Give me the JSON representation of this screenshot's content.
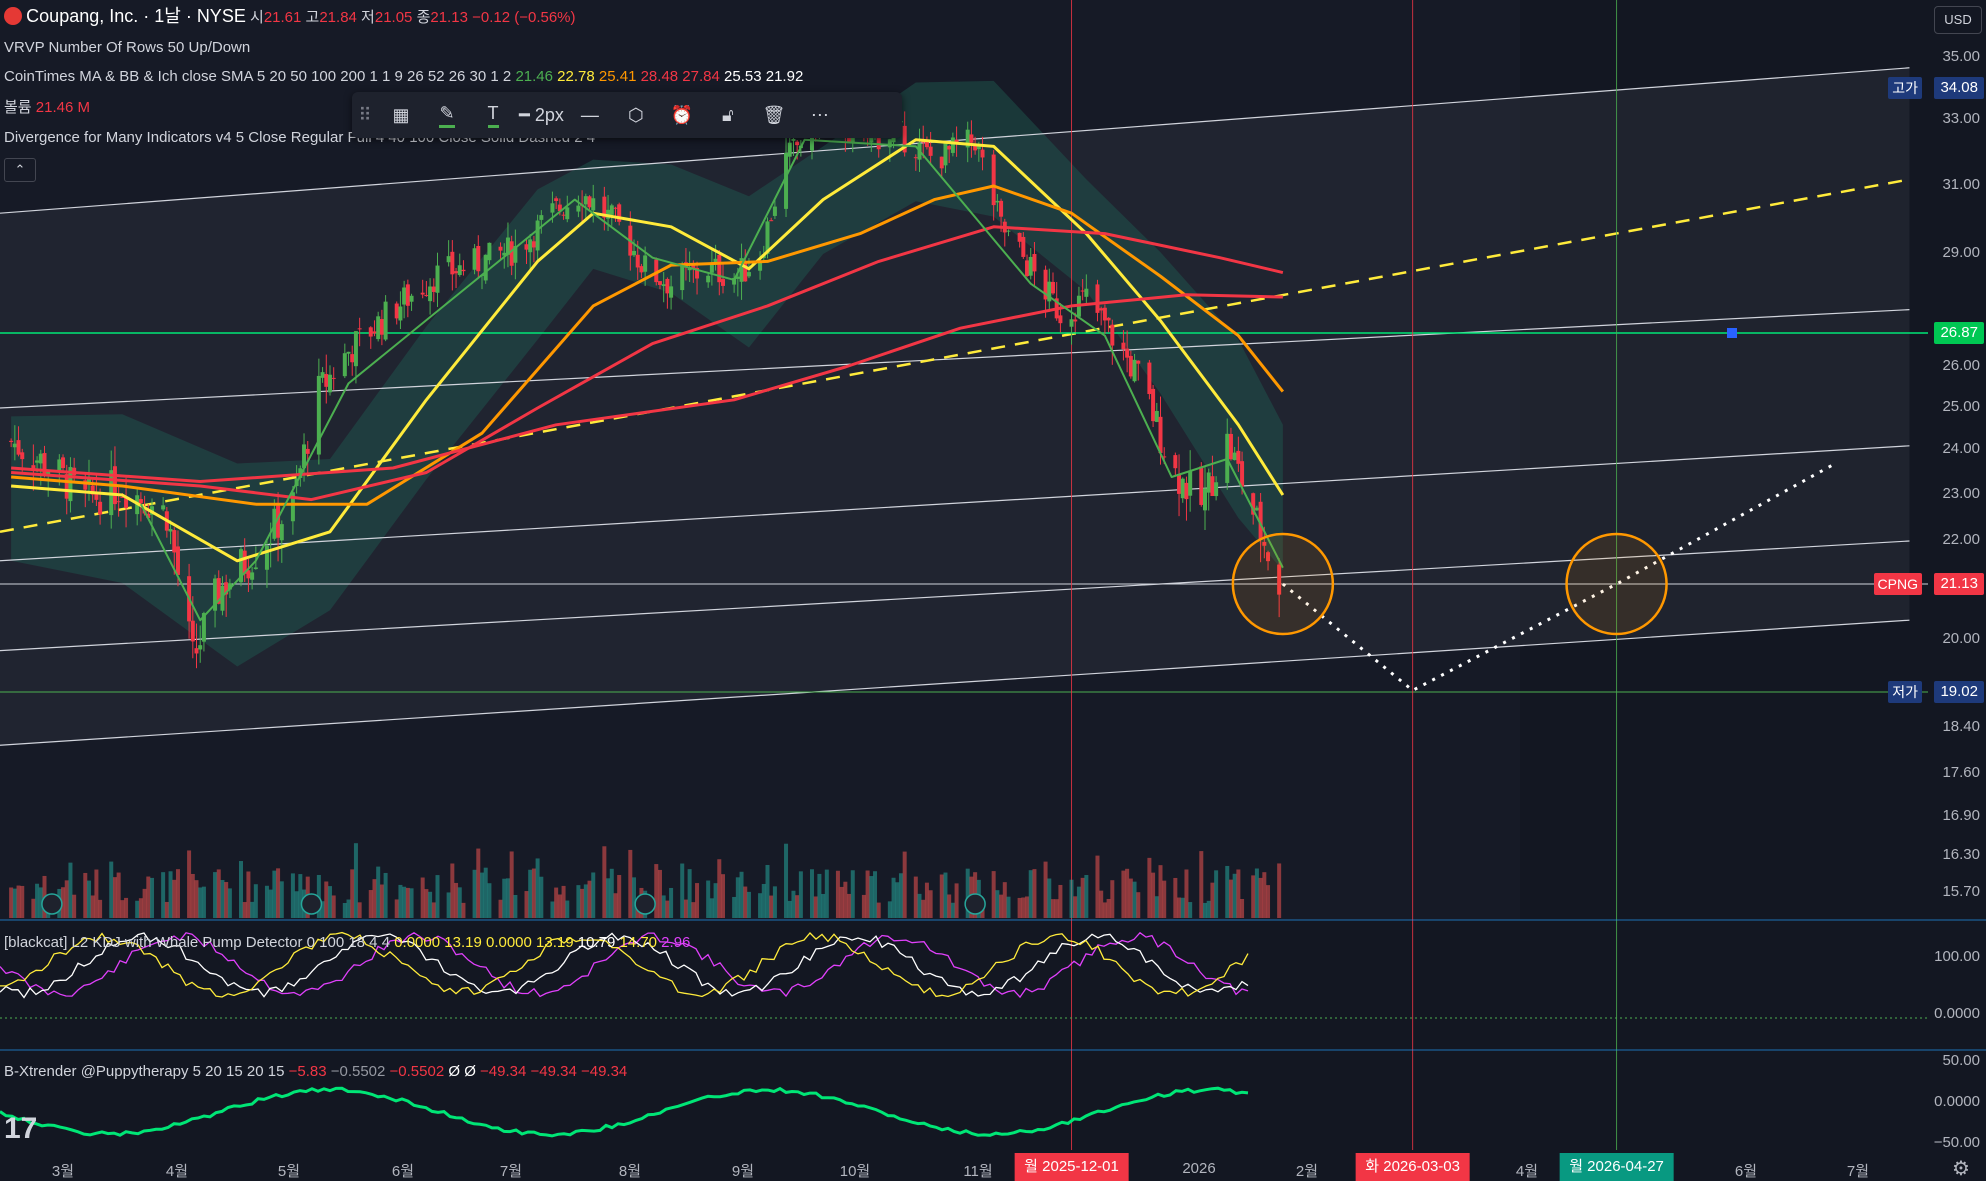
{
  "header": {
    "symbol_title": "Coupang, Inc. · 1날 · NYSE",
    "ohlc": [
      {
        "k": "시",
        "v": "21.61"
      },
      {
        "k": "고",
        "v": "21.84"
      },
      {
        "k": "저",
        "v": "21.05"
      },
      {
        "k": "종",
        "v": "21.13"
      }
    ],
    "change": "−0.12 (−0.56%)"
  },
  "legend": {
    "vrvp": "VRVP Number Of Rows 50 Up/Down",
    "ma_name": "CoinTimes MA & BB & Ich close SMA 5 20 50 100 200 1 1 9 26 52 26 30 1 2",
    "ma_values": [
      {
        "v": "21.46",
        "color": "#4caf50"
      },
      {
        "v": "22.78",
        "color": "#ffeb3b"
      },
      {
        "v": "25.41",
        "color": "#ff9800"
      },
      {
        "v": "28.48",
        "color": "#f23645"
      },
      {
        "v": "27.84",
        "color": "#f23645"
      },
      {
        "v": "25.53",
        "color": "#ffffff"
      },
      {
        "v": "21.92",
        "color": "#ffffff"
      }
    ],
    "volume_label": "볼륨",
    "volume_value": "21.46 M",
    "divergence": "Divergence for Many Indicators v4 5 Close Regular Full 4 40 100 Close Solid Dashed 2 4",
    "kdj_name": "[blackcat] L2 KDJ with Whale Pump Detector 0 100 18 4 4",
    "kdj_values": [
      {
        "v": "0.0000",
        "color": "#ffeb3b"
      },
      {
        "v": "13.19",
        "color": "#ffeb3b"
      },
      {
        "v": "0.0000",
        "color": "#ffeb3b"
      },
      {
        "v": "13.19",
        "color": "#ffeb3b"
      },
      {
        "v": "10.79",
        "color": "#ffffff"
      },
      {
        "v": "14.70",
        "color": "#ffeb3b"
      },
      {
        "v": "2.96",
        "color": "#e040fb"
      }
    ],
    "xtrender_name": "B-Xtrender @Puppytherapy 5 20 15 20 15",
    "xtrender_values": [
      {
        "v": "−5.83",
        "color": "#f23645"
      },
      {
        "v": "−0.5502",
        "color": "#9598a1"
      },
      {
        "v": "−0.5502",
        "color": "#f23645"
      },
      {
        "v": "Ø",
        "color": "#ffffff"
      },
      {
        "v": "Ø",
        "color": "#ffffff"
      },
      {
        "v": "−49.34",
        "color": "#f23645"
      },
      {
        "v": "−49.34",
        "color": "#f23645"
      },
      {
        "v": "−49.34",
        "color": "#f23645"
      }
    ]
  },
  "toolbar": {
    "width_label": "2px",
    "icons": [
      "drag-handle-icon",
      "layout-icon",
      "pencil-icon",
      "text-icon",
      "line-style-icon",
      "line-dash-icon",
      "settings-hex-icon",
      "alert-clock-icon",
      "lock-icon",
      "trash-icon",
      "more-icon"
    ]
  },
  "axis": {
    "currency": "USD",
    "price_ticks": [
      "35.00",
      "34.08",
      "33.00",
      "31.00",
      "29.00",
      "26.87",
      "26.00",
      "25.00",
      "24.00",
      "23.00",
      "22.00",
      "21.13",
      "20.00",
      "19.02",
      "18.40",
      "17.60",
      "16.90",
      "16.30",
      "15.70"
    ],
    "price_plain_ticks": [
      35.0,
      33.0,
      31.0,
      29.0,
      26.0,
      25.0,
      24.0,
      23.0,
      22.0,
      20.0,
      18.4,
      17.6,
      16.9,
      16.3,
      15.7
    ],
    "high_tag": {
      "label": "고가",
      "value": "34.08",
      "color": "#1e3a7b"
    },
    "hline_tag": {
      "value": "26.87",
      "color": "#00c853"
    },
    "last_tag": {
      "label": "CPNG",
      "value": "21.13",
      "color": "#f23645"
    },
    "low_tag": {
      "label": "저가",
      "value": "19.02",
      "color": "#1e3a7b"
    },
    "kdj_ticks": [
      "100.00",
      "0.0000"
    ],
    "xt_ticks": [
      "50.00",
      "0.0000",
      "−50.00"
    ]
  },
  "time_axis": {
    "ticks": [
      "3월",
      "4월",
      "5월",
      "6월",
      "7월",
      "8월",
      "9월",
      "10월",
      "11월",
      "2026",
      "2월",
      "4월",
      "6월",
      "7월"
    ],
    "highlights": [
      {
        "label": "월 2025-12-01",
        "color": "#f23645"
      },
      {
        "label": "화 2026-03-03",
        "color": "#f23645"
      },
      {
        "label": "월 2026-04-27",
        "color": "#089981"
      }
    ]
  },
  "chart_data": {
    "type": "candlestick",
    "symbol": "CPNG",
    "x_range": [
      "2025-02-15",
      "2026-07-20"
    ],
    "ylim": [
      15.3,
      36.0
    ],
    "last_close": 21.13,
    "high_level": 34.08,
    "low_level": 19.02,
    "horizontal_line": 26.87,
    "grid": false,
    "close_path": [
      [
        "2025-02-18",
        24.2
      ],
      [
        "2025-03-01",
        23.6
      ],
      [
        "2025-03-10",
        22.9
      ],
      [
        "2025-03-20",
        23.2
      ],
      [
        "2025-04-01",
        22.6
      ],
      [
        "2025-04-08",
        19.6
      ],
      [
        "2025-04-15",
        21.0
      ],
      [
        "2025-04-25",
        21.8
      ],
      [
        "2025-05-05",
        22.8
      ],
      [
        "2025-05-12",
        25.4
      ],
      [
        "2025-05-20",
        26.4
      ],
      [
        "2025-06-01",
        27.5
      ],
      [
        "2025-06-12",
        28.4
      ],
      [
        "2025-06-25",
        28.8
      ],
      [
        "2025-07-05",
        29.2
      ],
      [
        "2025-07-15",
        30.3
      ],
      [
        "2025-07-22",
        30.8
      ],
      [
        "2025-08-01",
        29.8
      ],
      [
        "2025-08-08",
        28.6
      ],
      [
        "2025-08-15",
        28.2
      ],
      [
        "2025-08-25",
        28.6
      ],
      [
        "2025-09-02",
        28.4
      ],
      [
        "2025-09-08",
        29.0
      ],
      [
        "2025-09-15",
        31.8
      ],
      [
        "2025-09-25",
        33.2
      ],
      [
        "2025-10-05",
        32.4
      ],
      [
        "2025-10-15",
        32.6
      ],
      [
        "2025-10-25",
        31.8
      ],
      [
        "2025-11-05",
        32.4
      ],
      [
        "2025-11-12",
        29.8
      ],
      [
        "2025-11-20",
        28.6
      ],
      [
        "2025-11-28",
        27.4
      ],
      [
        "2025-12-05",
        27.8
      ],
      [
        "2025-12-12",
        26.8
      ],
      [
        "2025-12-20",
        25.6
      ],
      [
        "2025-12-28",
        23.6
      ],
      [
        "2026-01-05",
        22.8
      ],
      [
        "2026-01-12",
        24.2
      ],
      [
        "2026-01-20",
        22.4
      ],
      [
        "2026-01-26",
        21.13
      ]
    ],
    "series": [
      {
        "name": "SMA 20",
        "color": "#ffeb3b",
        "values": [
          [
            "2025-02-18",
            23.2
          ],
          [
            "2025-03-20",
            23.0
          ],
          [
            "2025-04-20",
            21.6
          ],
          [
            "2025-05-15",
            22.2
          ],
          [
            "2025-06-10",
            25.2
          ],
          [
            "2025-07-10",
            28.8
          ],
          [
            "2025-07-25",
            30.2
          ],
          [
            "2025-08-15",
            29.8
          ],
          [
            "2025-09-05",
            28.6
          ],
          [
            "2025-09-25",
            30.6
          ],
          [
            "2025-10-20",
            32.4
          ],
          [
            "2025-11-10",
            32.2
          ],
          [
            "2025-12-05",
            29.6
          ],
          [
            "2025-12-25",
            27.2
          ],
          [
            "2026-01-15",
            24.6
          ],
          [
            "2026-01-27",
            23.0
          ]
        ]
      },
      {
        "name": "SMA 50",
        "color": "#ff9800",
        "values": [
          [
            "2025-02-18",
            23.4
          ],
          [
            "2025-03-20",
            23.2
          ],
          [
            "2025-04-25",
            22.8
          ],
          [
            "2025-05-25",
            22.8
          ],
          [
            "2025-06-25",
            24.4
          ],
          [
            "2025-07-25",
            27.6
          ],
          [
            "2025-08-15",
            28.7
          ],
          [
            "2025-09-10",
            28.8
          ],
          [
            "2025-10-05",
            29.6
          ],
          [
            "2025-10-25",
            30.6
          ],
          [
            "2025-11-10",
            31.0
          ],
          [
            "2025-12-01",
            30.2
          ],
          [
            "2025-12-25",
            28.4
          ],
          [
            "2026-01-15",
            26.8
          ],
          [
            "2026-01-27",
            25.4
          ]
        ]
      },
      {
        "name": "SMA 100",
        "color": "#f23645",
        "values": [
          [
            "2025-02-18",
            23.5
          ],
          [
            "2025-04-10",
            23.2
          ],
          [
            "2025-05-10",
            22.9
          ],
          [
            "2025-06-10",
            23.5
          ],
          [
            "2025-07-10",
            25.0
          ],
          [
            "2025-08-10",
            26.6
          ],
          [
            "2025-09-10",
            27.6
          ],
          [
            "2025-10-10",
            28.8
          ],
          [
            "2025-11-10",
            29.8
          ],
          [
            "2025-12-10",
            29.6
          ],
          [
            "2026-01-10",
            28.9
          ],
          [
            "2026-01-27",
            28.5
          ]
        ]
      },
      {
        "name": "SMA 200",
        "color": "#f23645",
        "values": [
          [
            "2025-02-18",
            23.6
          ],
          [
            "2025-04-10",
            23.3
          ],
          [
            "2025-06-01",
            23.6
          ],
          [
            "2025-07-15",
            24.6
          ],
          [
            "2025-09-01",
            25.2
          ],
          [
            "2025-10-01",
            26.0
          ],
          [
            "2025-11-01",
            27.0
          ],
          [
            "2025-12-01",
            27.6
          ],
          [
            "2026-01-01",
            27.9
          ],
          [
            "2026-01-27",
            27.84
          ]
        ]
      },
      {
        "name": "SMA 5",
        "color": "#4caf50",
        "values": [
          [
            "2025-03-25",
            22.8
          ],
          [
            "2025-04-10",
            20.4
          ],
          [
            "2025-04-25",
            21.6
          ],
          [
            "2025-05-20",
            25.6
          ],
          [
            "2025-07-20",
            30.6
          ],
          [
            "2025-08-10",
            28.9
          ],
          [
            "2025-09-01",
            28.3
          ],
          [
            "2025-09-20",
            32.4
          ],
          [
            "2025-10-20",
            32.2
          ],
          [
            "2025-11-20",
            28.2
          ],
          [
            "2025-12-10",
            26.8
          ],
          [
            "2025-12-28",
            23.4
          ],
          [
            "2026-01-12",
            23.8
          ],
          [
            "2026-01-27",
            21.46
          ]
        ]
      }
    ],
    "annotations": {
      "channel_upper": [
        [
          "2025-02-15",
          30.2
        ],
        [
          "2026-07-15",
          34.7
        ]
      ],
      "channel_mid": [
        [
          "2025-02-15",
          25.0
        ],
        [
          "2026-07-15",
          27.5
        ]
      ],
      "channel_low1": [
        [
          "2025-02-15",
          21.6
        ],
        [
          "2026-07-15",
          24.1
        ]
      ],
      "channel_low2": [
        [
          "2025-02-15",
          19.8
        ],
        [
          "2026-07-15",
          22.0
        ]
      ],
      "channel_bottom": [
        [
          "2025-02-15",
          18.1
        ],
        [
          "2026-07-15",
          20.4
        ]
      ],
      "yellow_dashed": [
        [
          "2025-02-15",
          22.2
        ],
        [
          "2026-07-15",
          31.2
        ]
      ],
      "projection": [
        [
          "2026-01-27",
          21.13
        ],
        [
          "2026-03-03",
          19.05
        ],
        [
          "2026-04-27",
          21.13
        ],
        [
          "2026-06-25",
          23.7
        ]
      ],
      "circles": [
        [
          "2026-01-27",
          21.13
        ],
        [
          "2026-04-27",
          21.13
        ]
      ]
    }
  }
}
